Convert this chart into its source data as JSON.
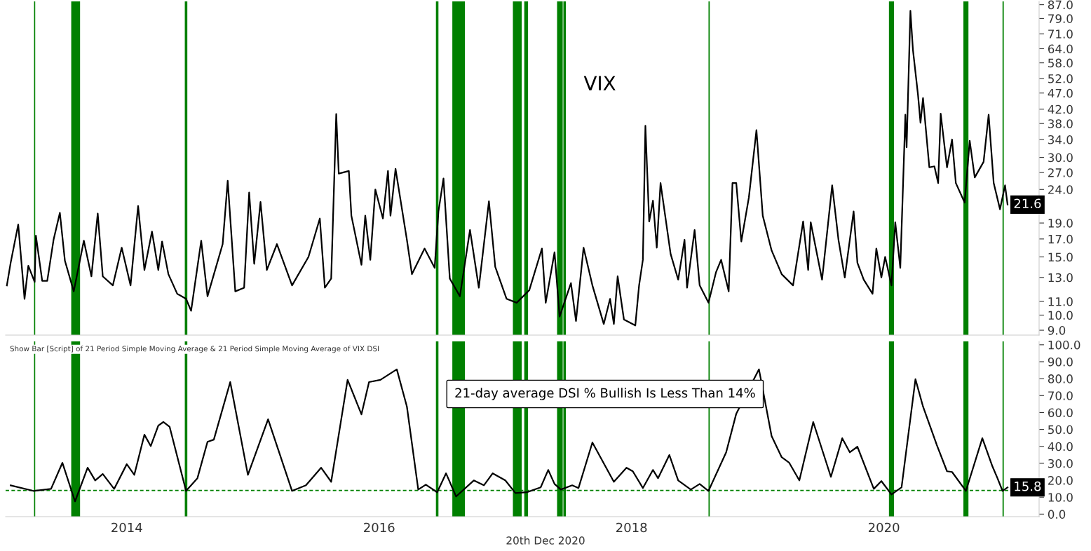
{
  "chart_data": [
    {
      "type": "line",
      "title": "VIX",
      "log": "y",
      "xlim": [
        2013.04,
        2021.23
      ],
      "ylim": [
        8.7,
        89
      ],
      "tick_labels": "y",
      "grid": false,
      "legend": false,
      "yticks": [
        {
          "value": 9,
          "label": "9.0"
        },
        {
          "value": 10,
          "label": "10.0"
        },
        {
          "value": 11,
          "label": "11.0"
        },
        {
          "value": 13,
          "label": "13.0"
        },
        {
          "value": 15,
          "label": "15.0"
        },
        {
          "value": 17,
          "label": "17.0"
        },
        {
          "value": 19,
          "label": "19.0"
        },
        {
          "value": 24,
          "label": "24.0"
        },
        {
          "value": 27,
          "label": "27.0"
        },
        {
          "value": 30,
          "label": "30.0"
        },
        {
          "value": 34,
          "label": "34.0"
        },
        {
          "value": 38,
          "label": "38.0"
        },
        {
          "value": 42,
          "label": "42.0"
        },
        {
          "value": 47,
          "label": "47.0"
        },
        {
          "value": 52,
          "label": "52.0"
        },
        {
          "value": 58,
          "label": "58.0"
        },
        {
          "value": 64,
          "label": "64.0"
        },
        {
          "value": 71,
          "label": "71.0"
        },
        {
          "value": 79,
          "label": "79.0"
        },
        {
          "value": 87,
          "label": "87.0"
        }
      ],
      "series": [
        {
          "color": "#000000",
          "x": [
            2013.05,
            2013.08,
            2013.14,
            2013.19,
            2013.22,
            2013.27,
            2013.28,
            2013.33,
            2013.37,
            2013.42,
            2013.47,
            2013.51,
            2013.58,
            2013.66,
            2013.72,
            2013.77,
            2013.81,
            2013.89,
            2013.96,
            2014.03,
            2014.09,
            2014.14,
            2014.2,
            2014.25,
            2014.28,
            2014.33,
            2014.4,
            2014.47,
            2014.51,
            2014.59,
            2014.64,
            2014.76,
            2014.8,
            2014.86,
            2014.93,
            2014.97,
            2015.01,
            2015.06,
            2015.11,
            2015.19,
            2015.31,
            2015.44,
            2015.53,
            2015.57,
            2015.62,
            2015.66,
            2015.68,
            2015.76,
            2015.78,
            2015.86,
            2015.89,
            2015.93,
            2015.97,
            2016.03,
            2016.07,
            2016.09,
            2016.13,
            2016.22,
            2016.26,
            2016.36,
            2016.44,
            2016.47,
            2016.51,
            2016.56,
            2016.64,
            2016.72,
            2016.79,
            2016.87,
            2016.92,
            2017.01,
            2017.09,
            2017.19,
            2017.29,
            2017.32,
            2017.39,
            2017.43,
            2017.52,
            2017.56,
            2017.62,
            2017.69,
            2017.78,
            2017.83,
            2017.86,
            2017.89,
            2017.94,
            2018.03,
            2018.06,
            2018.09,
            2018.11,
            2018.14,
            2018.17,
            2018.2,
            2018.23,
            2018.31,
            2018.37,
            2018.42,
            2018.44,
            2018.5,
            2018.54,
            2018.61,
            2018.67,
            2018.71,
            2018.77,
            2018.8,
            2018.83,
            2018.87,
            2018.93,
            2018.99,
            2019.04,
            2019.11,
            2019.19,
            2019.28,
            2019.36,
            2019.4,
            2019.42,
            2019.51,
            2019.59,
            2019.64,
            2019.69,
            2019.76,
            2019.79,
            2019.84,
            2019.91,
            2019.94,
            2019.98,
            2020.01,
            2020.06,
            2020.09,
            2020.13,
            2020.17,
            2020.18,
            2020.21,
            2020.23,
            2020.27,
            2020.29,
            2020.31,
            2020.36,
            2020.4,
            2020.43,
            2020.45,
            2020.5,
            2020.54,
            2020.57,
            2020.64,
            2020.68,
            2020.72,
            2020.79,
            2020.83,
            2020.87,
            2020.92,
            2020.96,
            2020.98
          ],
          "values": [
            12.3,
            14.4,
            18.8,
            11.2,
            14.1,
            12.6,
            17.4,
            12.7,
            12.7,
            16.9,
            20.4,
            14.6,
            11.8,
            16.8,
            13.1,
            20.3,
            13.1,
            12.3,
            16.0,
            12.3,
            21.4,
            13.7,
            17.9,
            13.7,
            16.7,
            13.3,
            11.6,
            11.2,
            10.3,
            16.8,
            11.4,
            16.4,
            25.5,
            11.8,
            12.1,
            23.5,
            14.3,
            22.0,
            13.7,
            16.4,
            12.3,
            15.0,
            19.6,
            12.1,
            12.9,
            40.6,
            26.8,
            27.3,
            20.0,
            14.2,
            20.0,
            14.7,
            24.0,
            19.6,
            27.3,
            20.0,
            27.7,
            16.9,
            13.3,
            15.9,
            13.9,
            20.6,
            25.9,
            12.9,
            11.4,
            18.1,
            12.1,
            22.1,
            14.0,
            11.2,
            10.9,
            11.9,
            15.9,
            10.9,
            15.5,
            9.9,
            12.5,
            9.6,
            16.0,
            12.3,
            9.4,
            11.2,
            9.4,
            13.1,
            9.7,
            9.3,
            12.3,
            14.7,
            37.4,
            19.2,
            22.2,
            16.0,
            25.1,
            15.3,
            12.8,
            16.9,
            12.1,
            18.1,
            12.3,
            10.9,
            13.5,
            14.7,
            11.8,
            25.1,
            25.1,
            16.7,
            22.7,
            36.3,
            20.0,
            15.7,
            13.3,
            12.3,
            19.2,
            13.7,
            19.1,
            12.8,
            24.7,
            16.9,
            13.0,
            20.6,
            14.4,
            12.8,
            11.6,
            15.9,
            13.0,
            15.0,
            12.3,
            19.1,
            13.9,
            40.4,
            32.2,
            83.4,
            63.6,
            46.5,
            38.2,
            45.4,
            28.0,
            28.2,
            25.1,
            40.7,
            28.0,
            34.0,
            25.1,
            21.9,
            33.7,
            26.1,
            29.1,
            40.4,
            25.1,
            20.9,
            24.7,
            21.6
          ]
        }
      ],
      "ref_lines": [
        {
          "axis": "x",
          "value": 2013.27,
          "color": "#008000",
          "line_style": "solid"
        }
      ],
      "bands": [
        {
          "axis": "x",
          "from": 2013.56,
          "to": 2013.63,
          "color": "#008000"
        },
        {
          "axis": "x",
          "from": 2014.46,
          "to": 2014.48,
          "color": "#008000"
        },
        {
          "axis": "x",
          "from": 2016.45,
          "to": 2016.47,
          "color": "#008000"
        },
        {
          "axis": "x",
          "from": 2016.58,
          "to": 2016.68,
          "color": "#008000"
        },
        {
          "axis": "x",
          "from": 2017.06,
          "to": 2017.13,
          "color": "#008000"
        },
        {
          "axis": "x",
          "from": 2017.15,
          "to": 2017.18,
          "color": "#008000"
        },
        {
          "axis": "x",
          "from": 2017.41,
          "to": 2017.455,
          "color": "#008000"
        },
        {
          "axis": "x",
          "from": 2017.46,
          "to": 2017.48,
          "color": "#008000"
        },
        {
          "axis": "x",
          "from": 2018.61,
          "to": 2018.62,
          "color": "#008000"
        },
        {
          "axis": "x",
          "from": 2020.04,
          "to": 2020.08,
          "color": "#008000"
        },
        {
          "axis": "x",
          "from": 2020.63,
          "to": 2020.67,
          "color": "#008000"
        },
        {
          "axis": "x",
          "from": 2020.94,
          "to": 2020.95,
          "color": "#008000"
        }
      ],
      "annotations": [
        {
          "text": "21.6",
          "x": 2020.98,
          "y": 21.6
        }
      ]
    },
    {
      "type": "line",
      "title": "Show Bar [Script] of 21 Period Simple Moving Average & 21 Period Simple Moving Average of VIX DSI",
      "xlim": [
        2013.04,
        2021.23
      ],
      "ylim": [
        -1.5,
        102
      ],
      "grid": false,
      "legend": false,
      "xticks": [
        2014,
        2016,
        2018,
        2020
      ],
      "yticks": [
        {
          "value": 0,
          "label": "0.0"
        },
        {
          "value": 10,
          "label": "10.0"
        },
        {
          "value": 20,
          "label": "20.0"
        },
        {
          "value": 30,
          "label": "30.0"
        },
        {
          "value": 40,
          "label": "40.0"
        },
        {
          "value": 50,
          "label": "50.0"
        },
        {
          "value": 60,
          "label": "60.0"
        },
        {
          "value": 70,
          "label": "70.0"
        },
        {
          "value": 80,
          "label": "80.0"
        },
        {
          "value": 90,
          "label": "90.0"
        },
        {
          "value": 100,
          "label": "100.0"
        }
      ],
      "series": [
        {
          "color": "#000000",
          "x": [
            2013.08,
            2013.26,
            2013.4,
            2013.49,
            2013.59,
            2013.69,
            2013.75,
            2013.81,
            2013.9,
            2014.0,
            2014.06,
            2014.14,
            2014.19,
            2014.25,
            2014.29,
            2014.34,
            2014.47,
            2014.56,
            2014.64,
            2014.69,
            2014.82,
            2014.96,
            2015.12,
            2015.31,
            2015.42,
            2015.54,
            2015.62,
            2015.75,
            2015.86,
            2015.92,
            2016.01,
            2016.14,
            2016.22,
            2016.31,
            2016.37,
            2016.46,
            2016.53,
            2016.61,
            2016.75,
            2016.83,
            2016.9,
            2017.0,
            2017.08,
            2017.17,
            2017.28,
            2017.34,
            2017.39,
            2017.44,
            2017.53,
            2017.58,
            2017.69,
            2017.86,
            2017.96,
            2018.01,
            2018.09,
            2018.17,
            2018.21,
            2018.3,
            2018.37,
            2018.47,
            2018.54,
            2018.61,
            2018.75,
            2018.83,
            2019.01,
            2019.11,
            2019.19,
            2019.25,
            2019.33,
            2019.44,
            2019.58,
            2019.67,
            2019.73,
            2019.79,
            2019.92,
            2019.98,
            2020.06,
            2020.14,
            2020.25,
            2020.31,
            2020.42,
            2020.5,
            2020.54,
            2020.65,
            2020.78,
            2020.86,
            2020.9,
            2020.94,
            2020.98
          ],
          "values": [
            17.0,
            13.7,
            14.9,
            30.3,
            7.5,
            27.4,
            19.9,
            23.7,
            14.9,
            29.5,
            23.2,
            46.9,
            40.2,
            52.3,
            54.4,
            51.5,
            13.7,
            21.2,
            42.7,
            44.0,
            78.0,
            23.2,
            56.0,
            13.7,
            17.0,
            27.4,
            19.1,
            79.3,
            58.9,
            78.0,
            79.3,
            85.5,
            63.5,
            14.5,
            17.4,
            12.9,
            24.1,
            10.4,
            19.9,
            17.0,
            24.1,
            19.9,
            12.4,
            12.9,
            15.8,
            26.1,
            17.8,
            14.5,
            17.0,
            15.4,
            42.3,
            19.1,
            27.4,
            25.3,
            15.4,
            26.1,
            21.2,
            34.9,
            19.9,
            14.5,
            17.8,
            13.7,
            36.5,
            59.3,
            85.5,
            46.1,
            33.6,
            30.3,
            19.9,
            54.4,
            22.0,
            44.8,
            36.5,
            39.8,
            14.9,
            19.5,
            11.6,
            15.8,
            79.7,
            63.5,
            40.7,
            25.3,
            24.9,
            13.7,
            44.8,
            28.2,
            21.2,
            13.7,
            15.8
          ]
        }
      ],
      "ref_lines": [
        {
          "axis": "x",
          "value": 2013.27,
          "color": "#008000",
          "line_style": "solid"
        },
        {
          "axis": "y",
          "value": 14,
          "color": "#008000",
          "line_style": "dashed"
        }
      ],
      "bands": [
        {
          "axis": "x",
          "from": 2013.56,
          "to": 2013.63,
          "color": "#008000"
        },
        {
          "axis": "x",
          "from": 2014.46,
          "to": 2014.48,
          "color": "#008000"
        },
        {
          "axis": "x",
          "from": 2016.45,
          "to": 2016.47,
          "color": "#008000"
        },
        {
          "axis": "x",
          "from": 2016.58,
          "to": 2016.68,
          "color": "#008000"
        },
        {
          "axis": "x",
          "from": 2017.06,
          "to": 2017.13,
          "color": "#008000"
        },
        {
          "axis": "x",
          "from": 2017.15,
          "to": 2017.18,
          "color": "#008000"
        },
        {
          "axis": "x",
          "from": 2017.41,
          "to": 2017.455,
          "color": "#008000"
        },
        {
          "axis": "x",
          "from": 2017.46,
          "to": 2017.48,
          "color": "#008000"
        },
        {
          "axis": "x",
          "from": 2018.61,
          "to": 2018.62,
          "color": "#008000"
        },
        {
          "axis": "x",
          "from": 2020.04,
          "to": 2020.08,
          "color": "#008000"
        },
        {
          "axis": "x",
          "from": 2020.63,
          "to": 2020.67,
          "color": "#008000"
        },
        {
          "axis": "x",
          "from": 2020.94,
          "to": 2020.95,
          "color": "#008000"
        }
      ],
      "annotations": [
        "21-day average DSI % Bullish Is Less Than 14%",
        "20th Dec 2020",
        {
          "text": "15.8",
          "x": 2020.98,
          "y": 15.8
        }
      ]
    }
  ]
}
